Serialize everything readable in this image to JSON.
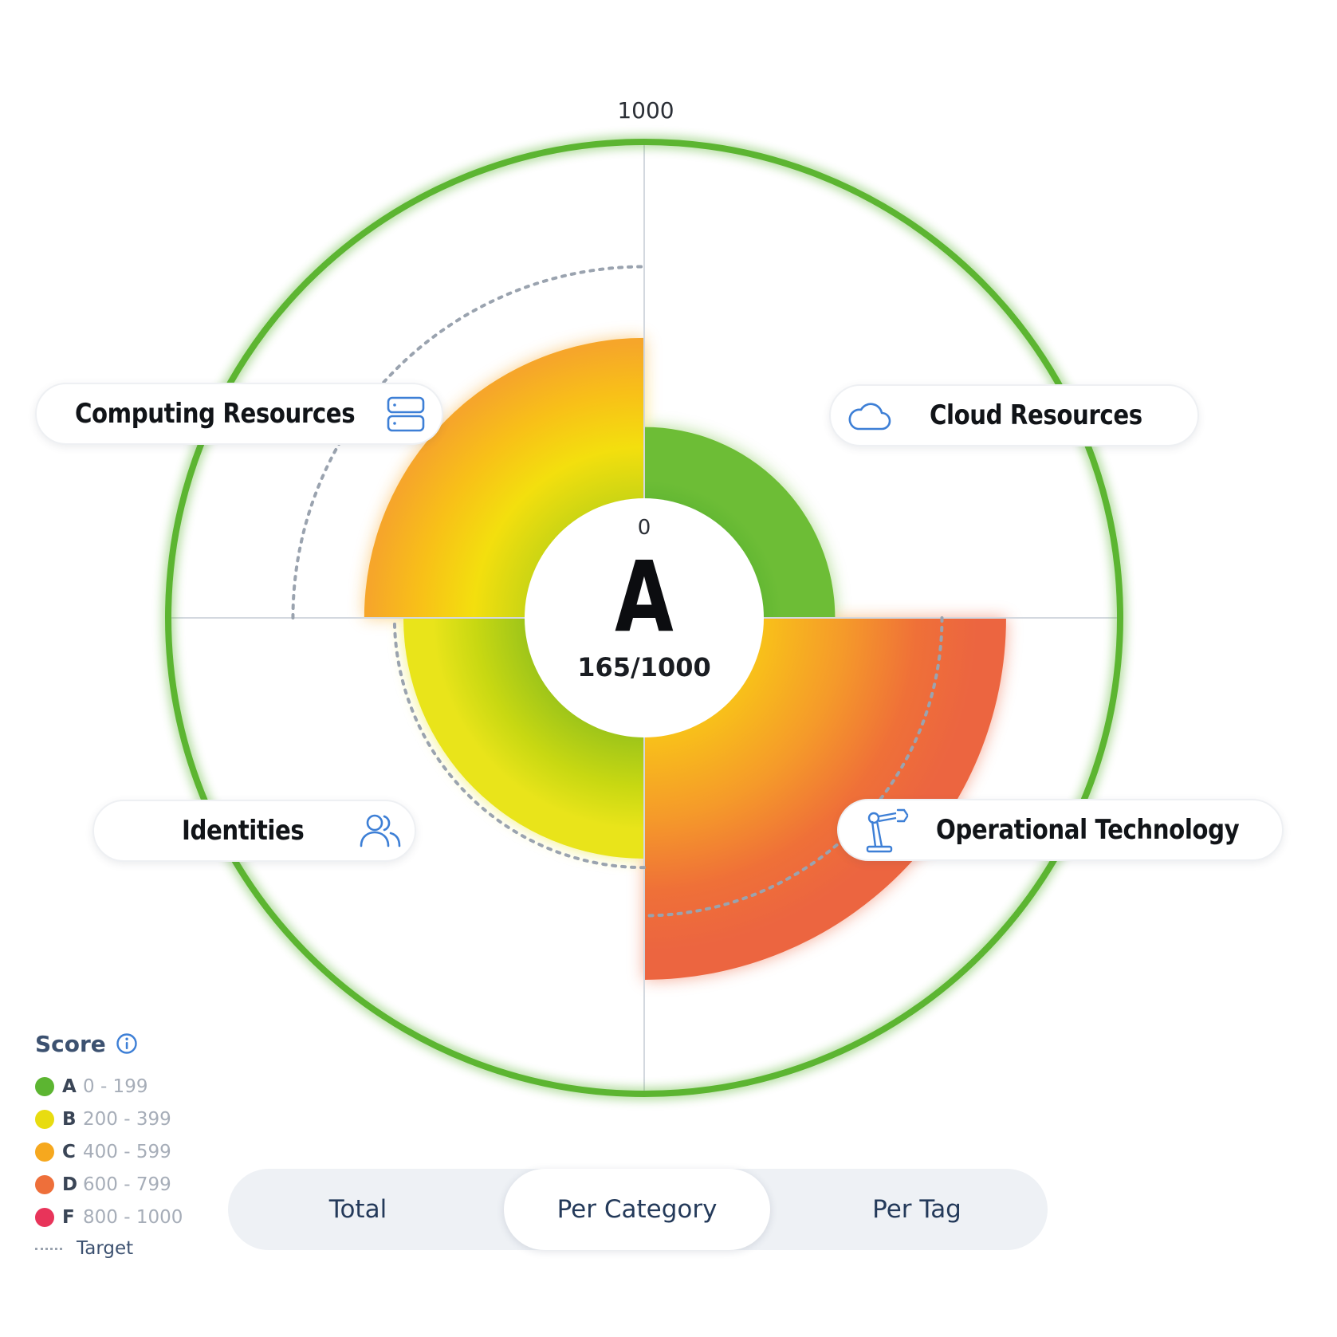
{
  "gauge": {
    "max_label": "1000",
    "min_label": "0",
    "grade": "A",
    "score_text": "165/1000",
    "outer_ring_color": "#5cb531"
  },
  "chart_data": {
    "type": "polar-area",
    "scale_min": 0,
    "scale_max": 1000,
    "overall_score": 165,
    "overall_grade": "A",
    "categories": [
      {
        "name": "Computing Resources",
        "quadrant": "top-left",
        "score": 450,
        "target": 650,
        "icon": "server-icon"
      },
      {
        "name": "Cloud Resources",
        "quadrant": "top-right",
        "score": 200,
        "target": null,
        "icon": "cloud-icon"
      },
      {
        "name": "Operational Technology",
        "quadrant": "bottom-right",
        "score": 680,
        "target": 500,
        "icon": "robot-arm-icon"
      },
      {
        "name": "Identities",
        "quadrant": "bottom-left",
        "score": 340,
        "target": 365,
        "icon": "users-icon"
      }
    ]
  },
  "legend": {
    "title": "Score",
    "items": [
      {
        "grade": "A",
        "range": "0 - 199",
        "color": "#5cb531"
      },
      {
        "grade": "B",
        "range": "200 - 399",
        "color": "#e8dc10"
      },
      {
        "grade": "C",
        "range": "400 - 599",
        "color": "#f6a81e"
      },
      {
        "grade": "D",
        "range": "600 - 799",
        "color": "#ee6f3a"
      },
      {
        "grade": "F",
        "range": "800 - 1000",
        "color": "#e8345a"
      }
    ],
    "target_label": "Target"
  },
  "tabs": {
    "items": [
      "Total",
      "Per Category",
      "Per Tag"
    ],
    "selected": "Per Category"
  },
  "colors": {
    "axis": "#d3d8df",
    "target_dash": "#9aa3af",
    "icon_blue": "#3d7fd6"
  }
}
